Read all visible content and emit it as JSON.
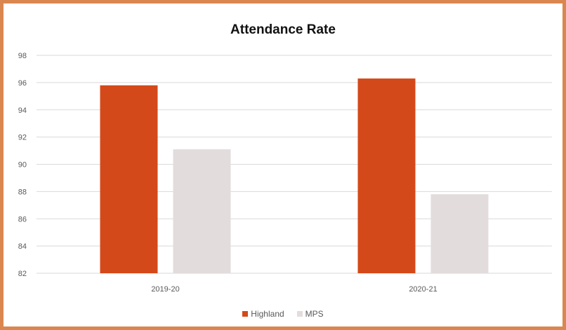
{
  "chart_data": {
    "type": "bar",
    "title": "Attendance Rate",
    "xlabel": "",
    "ylabel": "",
    "categories": [
      "2019-20",
      "2020-21"
    ],
    "series": [
      {
        "name": "Highland",
        "values": [
          95.8,
          96.3
        ],
        "color": "#d4491a"
      },
      {
        "name": "MPS",
        "values": [
          91.1,
          87.8
        ],
        "color": "#e3dcdc"
      }
    ],
    "ylim": [
      82,
      98
    ],
    "yticks": [
      "82",
      "84",
      "86",
      "88",
      "90",
      "92",
      "94",
      "96",
      "98"
    ],
    "grid": true,
    "legend_position": "bottom"
  },
  "colors": {
    "border": "#d9874f",
    "grid": "#d9d9d9",
    "axis_text": "#595959"
  }
}
